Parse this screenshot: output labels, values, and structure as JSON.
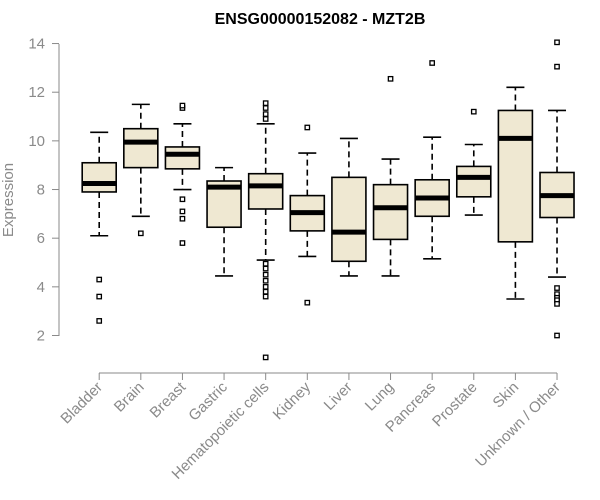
{
  "chart_data": {
    "type": "boxplot",
    "title": "ENSG00000152082 - MZT2B",
    "xlabel": "",
    "ylabel": "Expression",
    "ylim": [
      1,
      14.5
    ],
    "yticks": [
      2,
      4,
      6,
      8,
      10,
      12,
      14
    ],
    "grid": false,
    "colors": {
      "box_fill": "#efe8d2",
      "stroke": "#000000",
      "axis": "#8a8a8a",
      "text": "#8a8a8a"
    },
    "categories": [
      "Bladder",
      "Brain",
      "Breast",
      "Gastric",
      "Hematopoietic cells",
      "Kidney",
      "Liver",
      "Lung",
      "Pancreas",
      "Prostate",
      "Skin",
      "Unknown / Other"
    ],
    "boxes": [
      {
        "category": "Bladder",
        "whisker_low": 6.1,
        "q1": 7.9,
        "median": 8.25,
        "q3": 9.1,
        "whisker_high": 10.35,
        "outliers": [
          4.3,
          3.6,
          2.6
        ]
      },
      {
        "category": "Brain",
        "whisker_low": 6.9,
        "q1": 8.9,
        "median": 9.95,
        "q3": 10.5,
        "whisker_high": 11.5,
        "outliers": [
          6.2
        ]
      },
      {
        "category": "Breast",
        "whisker_low": 8.0,
        "q1": 8.85,
        "median": 9.45,
        "q3": 9.75,
        "whisker_high": 10.7,
        "outliers": [
          11.35,
          11.45,
          7.6,
          7.1,
          6.8,
          5.8
        ]
      },
      {
        "category": "Gastric",
        "whisker_low": 4.45,
        "q1": 6.45,
        "median": 8.1,
        "q3": 8.35,
        "whisker_high": 8.9,
        "outliers": []
      },
      {
        "category": "Hematopoietic cells",
        "whisker_low": 5.1,
        "q1": 7.2,
        "median": 8.15,
        "q3": 8.65,
        "whisker_high": 10.7,
        "outliers": [
          10.9,
          11.1,
          11.35,
          11.55,
          4.95,
          4.75,
          4.5,
          4.25,
          4.0,
          3.8,
          3.6,
          1.1
        ]
      },
      {
        "category": "Kidney",
        "whisker_low": 5.25,
        "q1": 6.3,
        "median": 7.05,
        "q3": 7.75,
        "whisker_high": 9.5,
        "outliers": [
          10.55,
          3.35
        ]
      },
      {
        "category": "Liver",
        "whisker_low": 4.45,
        "q1": 5.05,
        "median": 6.25,
        "q3": 8.5,
        "whisker_high": 10.1,
        "outliers": []
      },
      {
        "category": "Lung",
        "whisker_low": 4.45,
        "q1": 5.95,
        "median": 7.25,
        "q3": 8.2,
        "whisker_high": 9.25,
        "outliers": [
          12.55
        ]
      },
      {
        "category": "Pancreas",
        "whisker_low": 5.15,
        "q1": 6.9,
        "median": 7.65,
        "q3": 8.4,
        "whisker_high": 10.15,
        "outliers": [
          13.2
        ]
      },
      {
        "category": "Prostate",
        "whisker_low": 6.95,
        "q1": 7.7,
        "median": 8.5,
        "q3": 8.95,
        "whisker_high": 9.85,
        "outliers": [
          11.2
        ]
      },
      {
        "category": "Skin",
        "whisker_low": 3.5,
        "q1": 5.85,
        "median": 10.1,
        "q3": 11.25,
        "whisker_high": 12.2,
        "outliers": []
      },
      {
        "category": "Unknown / Other",
        "whisker_low": 4.4,
        "q1": 6.85,
        "median": 7.75,
        "q3": 8.7,
        "whisker_high": 11.25,
        "outliers": [
          14.05,
          13.05,
          3.95,
          3.7,
          3.55,
          3.45,
          3.3,
          2.0
        ]
      }
    ]
  }
}
